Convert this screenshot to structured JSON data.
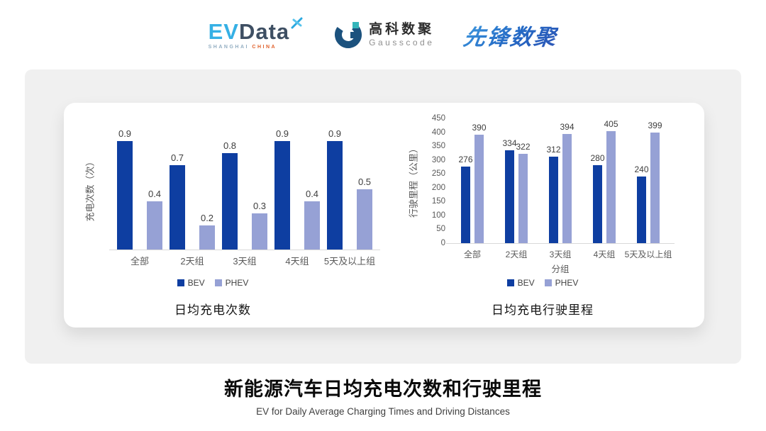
{
  "header": {
    "evdata": {
      "ev": "EV",
      "data": "Data",
      "sub_left": "SHANGHAI",
      "sub_right": "CHINA"
    },
    "gausscode": {
      "cn": "高科数聚",
      "en": "Gausscode"
    },
    "xianfeng": {
      "text": "先锋数聚"
    }
  },
  "colors": {
    "bev": "#0e3ea1",
    "phev": "#96a1d5",
    "axis_line": "#d9d9d9",
    "tick_text": "#595959",
    "panel_bg": "#f0f0f0"
  },
  "chart_data": [
    {
      "id": "daily-charging-times",
      "type": "bar",
      "title": "日均充电次数",
      "ylabel": "充电次数（次）",
      "xlabel": "",
      "categories": [
        "全部",
        "2天组",
        "3天组",
        "4天组",
        "5天及以上组"
      ],
      "series": [
        {
          "name": "BEV",
          "values": [
            0.9,
            0.7,
            0.8,
            0.9,
            0.9
          ]
        },
        {
          "name": "PHEV",
          "values": [
            0.4,
            0.2,
            0.3,
            0.4,
            0.5
          ]
        }
      ],
      "ylim": [
        0,
        1
      ],
      "y_ticks_visible": false,
      "grid": false,
      "legend_position": "bottom"
    },
    {
      "id": "daily-driving-distance",
      "type": "bar",
      "title": "日均充电行驶里程",
      "ylabel": "行驶里程（公里）",
      "xlabel": "分组",
      "categories": [
        "全部",
        "2天组",
        "3天组",
        "4天组",
        "5天及以上组"
      ],
      "series": [
        {
          "name": "BEV",
          "values": [
            276,
            334,
            312,
            280,
            240
          ]
        },
        {
          "name": "PHEV",
          "values": [
            390,
            322,
            394,
            405,
            399
          ]
        }
      ],
      "ylim": [
        0,
        450
      ],
      "ytick_step": 50,
      "y_ticks_visible": true,
      "grid": false,
      "legend_position": "bottom"
    }
  ],
  "footer": {
    "title": "新能源汽车日均充电次数和行驶里程",
    "subtitle": "EV for Daily Average Charging Times and Driving Distances"
  }
}
